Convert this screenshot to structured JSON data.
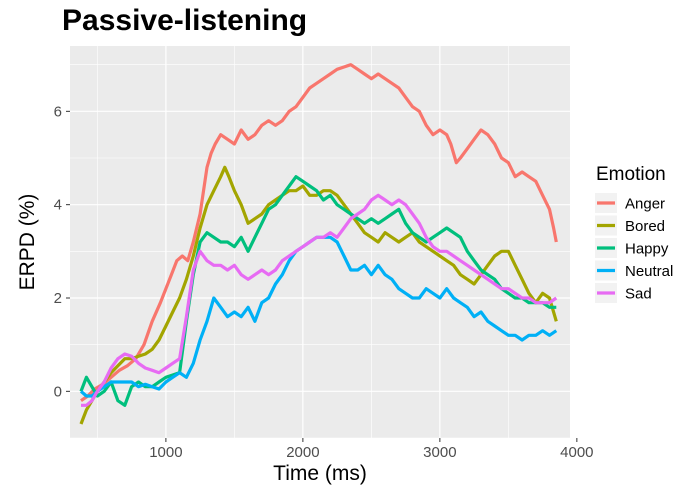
{
  "chart_data": {
    "type": "line",
    "title": "Passive-listening",
    "xlabel": "Time (ms)",
    "ylabel": "ERPD (%)",
    "xlim": [
      300,
      3950
    ],
    "ylim": [
      -1,
      7.4
    ],
    "xticks": [
      1000,
      2000,
      3000,
      4000
    ],
    "yticks": [
      0,
      2,
      4,
      6
    ],
    "grid": true,
    "legend_position": "right",
    "legend_title": "Emotion",
    "series": [
      {
        "name": "Anger",
        "color": "#F8766D",
        "x": [
          380,
          430,
          480,
          540,
          600,
          660,
          720,
          780,
          840,
          900,
          960,
          1000,
          1040,
          1080,
          1120,
          1160,
          1200,
          1250,
          1300,
          1330,
          1360,
          1400,
          1450,
          1500,
          1550,
          1600,
          1650,
          1700,
          1750,
          1800,
          1850,
          1900,
          1950,
          2000,
          2050,
          2100,
          2150,
          2200,
          2250,
          2300,
          2350,
          2400,
          2450,
          2500,
          2550,
          2600,
          2650,
          2700,
          2750,
          2800,
          2850,
          2900,
          2950,
          3000,
          3050,
          3080,
          3120,
          3150,
          3200,
          3250,
          3300,
          3350,
          3400,
          3450,
          3500,
          3550,
          3600,
          3650,
          3700,
          3750,
          3800,
          3830,
          3850
        ],
        "y": [
          -0.2,
          -0.1,
          0.05,
          0.15,
          0.3,
          0.45,
          0.55,
          0.7,
          1.0,
          1.5,
          1.9,
          2.2,
          2.5,
          2.8,
          2.9,
          2.8,
          3.2,
          3.8,
          4.8,
          5.1,
          5.3,
          5.5,
          5.4,
          5.3,
          5.6,
          5.4,
          5.5,
          5.7,
          5.8,
          5.7,
          5.8,
          6.0,
          6.1,
          6.3,
          6.5,
          6.6,
          6.7,
          6.8,
          6.9,
          6.95,
          7.0,
          6.9,
          6.8,
          6.7,
          6.8,
          6.7,
          6.6,
          6.5,
          6.3,
          6.1,
          6.0,
          5.7,
          5.5,
          5.6,
          5.5,
          5.3,
          4.9,
          5.0,
          5.2,
          5.4,
          5.6,
          5.5,
          5.3,
          5.0,
          4.9,
          4.6,
          4.7,
          4.6,
          4.5,
          4.2,
          3.9,
          3.5,
          3.2
        ]
      },
      {
        "name": "Bored",
        "color": "#A3A500",
        "x": [
          380,
          420,
          460,
          500,
          550,
          600,
          650,
          700,
          750,
          800,
          850,
          900,
          950,
          1000,
          1050,
          1100,
          1150,
          1200,
          1250,
          1300,
          1350,
          1400,
          1430,
          1460,
          1500,
          1550,
          1600,
          1650,
          1700,
          1750,
          1800,
          1850,
          1900,
          1950,
          2000,
          2050,
          2100,
          2150,
          2200,
          2250,
          2300,
          2350,
          2400,
          2450,
          2500,
          2550,
          2600,
          2650,
          2700,
          2750,
          2800,
          2850,
          2900,
          2950,
          3000,
          3050,
          3100,
          3150,
          3200,
          3250,
          3300,
          3350,
          3400,
          3450,
          3500,
          3550,
          3600,
          3650,
          3700,
          3750,
          3800,
          3850
        ],
        "y": [
          -0.7,
          -0.4,
          -0.2,
          0.0,
          0.2,
          0.4,
          0.55,
          0.7,
          0.7,
          0.75,
          0.8,
          0.9,
          1.1,
          1.4,
          1.7,
          2.0,
          2.4,
          2.9,
          3.5,
          4.0,
          4.3,
          4.6,
          4.8,
          4.6,
          4.3,
          4.0,
          3.6,
          3.7,
          3.8,
          4.0,
          4.1,
          4.2,
          4.3,
          4.3,
          4.4,
          4.2,
          4.2,
          4.3,
          4.3,
          4.2,
          4.0,
          3.8,
          3.6,
          3.4,
          3.3,
          3.2,
          3.4,
          3.3,
          3.2,
          3.3,
          3.4,
          3.2,
          3.1,
          3.0,
          2.9,
          2.8,
          2.7,
          2.5,
          2.4,
          2.3,
          2.5,
          2.7,
          2.9,
          3.0,
          3.0,
          2.7,
          2.4,
          2.1,
          1.9,
          2.1,
          2.0,
          1.5
        ]
      },
      {
        "name": "Happy",
        "color": "#00BF7D",
        "x": [
          380,
          420,
          460,
          500,
          550,
          600,
          650,
          700,
          750,
          800,
          850,
          900,
          950,
          1000,
          1050,
          1100,
          1150,
          1200,
          1250,
          1300,
          1350,
          1400,
          1450,
          1500,
          1550,
          1600,
          1650,
          1700,
          1750,
          1800,
          1850,
          1900,
          1950,
          2000,
          2050,
          2100,
          2150,
          2200,
          2250,
          2300,
          2350,
          2400,
          2450,
          2500,
          2550,
          2600,
          2650,
          2700,
          2750,
          2800,
          2850,
          2900,
          2950,
          3000,
          3050,
          3100,
          3150,
          3200,
          3250,
          3300,
          3350,
          3400,
          3450,
          3500,
          3550,
          3600,
          3650,
          3700,
          3750,
          3800,
          3850
        ],
        "y": [
          0.0,
          0.3,
          0.1,
          -0.1,
          0.0,
          0.2,
          -0.2,
          -0.3,
          0.1,
          0.2,
          0.1,
          0.1,
          0.2,
          0.3,
          0.35,
          0.4,
          1.5,
          2.5,
          3.2,
          3.4,
          3.3,
          3.2,
          3.2,
          3.1,
          3.3,
          3.0,
          3.3,
          3.6,
          3.9,
          4.0,
          4.2,
          4.4,
          4.6,
          4.5,
          4.4,
          4.3,
          4.1,
          4.2,
          4.0,
          3.9,
          3.8,
          3.7,
          3.6,
          3.7,
          3.6,
          3.7,
          3.8,
          3.9,
          3.6,
          3.4,
          3.3,
          3.2,
          3.3,
          3.4,
          3.5,
          3.4,
          3.3,
          3.0,
          2.8,
          2.6,
          2.5,
          2.4,
          2.2,
          2.1,
          2.0,
          2.0,
          1.9,
          1.9,
          1.9,
          1.8,
          1.8
        ]
      },
      {
        "name": "Neutral",
        "color": "#00B0F6",
        "x": [
          380,
          420,
          460,
          500,
          550,
          600,
          650,
          700,
          750,
          800,
          850,
          900,
          950,
          1000,
          1050,
          1100,
          1150,
          1200,
          1250,
          1300,
          1350,
          1400,
          1450,
          1500,
          1550,
          1600,
          1650,
          1700,
          1750,
          1800,
          1850,
          1900,
          1950,
          2000,
          2050,
          2100,
          2150,
          2200,
          2250,
          2300,
          2350,
          2400,
          2450,
          2500,
          2550,
          2600,
          2650,
          2700,
          2750,
          2800,
          2850,
          2900,
          2950,
          3000,
          3050,
          3100,
          3150,
          3200,
          3250,
          3300,
          3350,
          3400,
          3450,
          3500,
          3550,
          3600,
          3650,
          3700,
          3750,
          3800,
          3850
        ],
        "y": [
          0.0,
          -0.1,
          -0.1,
          0.0,
          0.1,
          0.2,
          0.2,
          0.2,
          0.2,
          0.1,
          0.15,
          0.1,
          0.05,
          0.2,
          0.3,
          0.4,
          0.3,
          0.6,
          1.1,
          1.5,
          2.0,
          1.8,
          1.6,
          1.7,
          1.6,
          1.8,
          1.5,
          1.9,
          2.0,
          2.3,
          2.5,
          2.8,
          3.0,
          3.1,
          3.2,
          3.3,
          3.3,
          3.3,
          3.2,
          2.9,
          2.6,
          2.6,
          2.7,
          2.5,
          2.7,
          2.5,
          2.4,
          2.2,
          2.1,
          2.0,
          2.0,
          2.2,
          2.1,
          2.0,
          2.2,
          2.0,
          1.9,
          1.8,
          1.6,
          1.7,
          1.5,
          1.4,
          1.3,
          1.2,
          1.2,
          1.1,
          1.2,
          1.2,
          1.3,
          1.2,
          1.3
        ]
      },
      {
        "name": "Sad",
        "color": "#E76BF3",
        "x": [
          380,
          420,
          460,
          500,
          550,
          600,
          650,
          700,
          750,
          800,
          850,
          900,
          950,
          1000,
          1050,
          1100,
          1150,
          1200,
          1250,
          1300,
          1350,
          1400,
          1450,
          1500,
          1550,
          1600,
          1650,
          1700,
          1750,
          1800,
          1850,
          1900,
          1950,
          2000,
          2050,
          2100,
          2150,
          2200,
          2250,
          2300,
          2350,
          2400,
          2450,
          2500,
          2550,
          2600,
          2650,
          2700,
          2750,
          2800,
          2850,
          2900,
          2950,
          3000,
          3050,
          3100,
          3150,
          3200,
          3250,
          3300,
          3350,
          3400,
          3450,
          3500,
          3550,
          3600,
          3650,
          3700,
          3750,
          3800,
          3850
        ],
        "y": [
          -0.3,
          -0.3,
          -0.2,
          0.0,
          0.2,
          0.5,
          0.7,
          0.8,
          0.75,
          0.6,
          0.5,
          0.45,
          0.4,
          0.5,
          0.6,
          0.7,
          1.6,
          2.6,
          3.0,
          2.8,
          2.7,
          2.7,
          2.6,
          2.7,
          2.5,
          2.4,
          2.5,
          2.6,
          2.5,
          2.6,
          2.8,
          2.9,
          3.0,
          3.1,
          3.2,
          3.3,
          3.3,
          3.4,
          3.3,
          3.5,
          3.7,
          3.8,
          3.9,
          4.1,
          4.2,
          4.1,
          4.0,
          4.1,
          4.0,
          3.8,
          3.6,
          3.3,
          3.1,
          3.0,
          3.0,
          2.9,
          2.8,
          2.7,
          2.6,
          2.5,
          2.4,
          2.3,
          2.2,
          2.2,
          2.1,
          2.0,
          2.0,
          1.9,
          1.9,
          1.9,
          2.0
        ]
      }
    ]
  }
}
